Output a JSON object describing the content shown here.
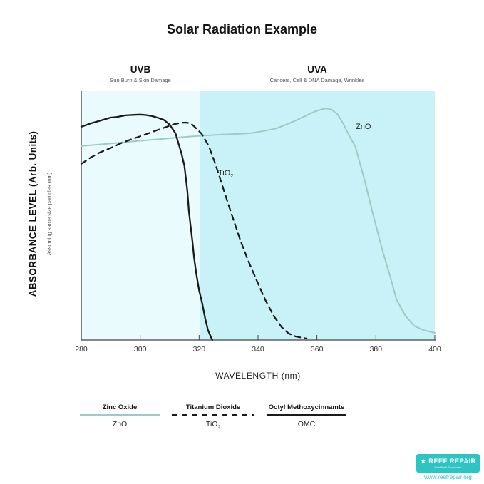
{
  "title": "Solar Radiation Example",
  "regions": {
    "uvb": {
      "label": "UVB",
      "sublabel": "Sun Burn & Skin Damage"
    },
    "uva": {
      "label": "UVA",
      "sublabel": "Cancers, Cell & DNA Damage, Wrinkles"
    }
  },
  "y_axis": {
    "label": "ABSORBANCE LEVEL (Arb. Units)",
    "sublabel": "Assuming same size particles (nm)"
  },
  "x_axis": {
    "label": "WAVELENGTH (nm)",
    "ticks": [
      "280",
      "300",
      "320",
      "340",
      "360",
      "380",
      "400"
    ]
  },
  "annotations": {
    "tio2_main": "TiO",
    "tio2_sub": "2",
    "zno": "ZnO"
  },
  "legend": [
    {
      "name": "Zinc Oxide",
      "formula_main": "ZnO",
      "formula_sub": "",
      "line": "solid-teal"
    },
    {
      "name": "Titanium Dioxide",
      "formula_main": "TiO",
      "formula_sub": "2",
      "line": "dashed-black"
    },
    {
      "name": "Octyl Methoxycinnamte",
      "formula_main": "OMC",
      "formula_sub": "",
      "line": "solid-black"
    }
  ],
  "footer": {
    "brand": "REEF REPAIR",
    "tagline": "Reef Safe Sunscreen",
    "url": "www.reefrepair.org"
  },
  "colors": {
    "teal_line": "#9bccc4",
    "black_line": "#1a1a1a",
    "uvb_bg": "#eafbfd",
    "uva_bg": "#c8f2f7",
    "brand_teal": "#2cc5c3",
    "axis": "#444444"
  },
  "chart_data": {
    "type": "line",
    "title": "Solar Radiation Example",
    "xlabel": "WAVELENGTH (nm)",
    "ylabel": "ABSORBANCE LEVEL (Arb. Units)",
    "xlim": [
      280,
      400
    ],
    "ylim": [
      0,
      1
    ],
    "x_ticks": [
      280,
      300,
      320,
      340,
      360,
      380,
      400
    ],
    "grid": false,
    "legend_position": "below",
    "regions": [
      {
        "name": "UVB",
        "range": [
          280,
          320
        ]
      },
      {
        "name": "UVA",
        "range": [
          320,
          400
        ]
      }
    ],
    "series": [
      {
        "name": "ZnO",
        "label": "Zinc Oxide",
        "style": "solid",
        "color": "#9bccc4",
        "width": 2,
        "points": [
          [
            280,
            0.78
          ],
          [
            286,
            0.786
          ],
          [
            292,
            0.792
          ],
          [
            298,
            0.799
          ],
          [
            304,
            0.805
          ],
          [
            310,
            0.811
          ],
          [
            316,
            0.817
          ],
          [
            322,
            0.822
          ],
          [
            328,
            0.826
          ],
          [
            334,
            0.829
          ],
          [
            338,
            0.832
          ],
          [
            342,
            0.84
          ],
          [
            346,
            0.85
          ],
          [
            350,
            0.868
          ],
          [
            353,
            0.883
          ],
          [
            356,
            0.9
          ],
          [
            359,
            0.917
          ],
          [
            361,
            0.925
          ],
          [
            363,
            0.931
          ],
          [
            365,
            0.926
          ],
          [
            367,
            0.907
          ],
          [
            369,
            0.868
          ],
          [
            371,
            0.82
          ],
          [
            373,
            0.779
          ],
          [
            376,
            0.65
          ],
          [
            379,
            0.507
          ],
          [
            382,
            0.37
          ],
          [
            385,
            0.249
          ],
          [
            387,
            0.163
          ],
          [
            390,
            0.097
          ],
          [
            393,
            0.057
          ],
          [
            396,
            0.04
          ],
          [
            400,
            0.029
          ]
        ]
      },
      {
        "name": "TiO2",
        "label": "Titanium Dioxide",
        "style": "dashed",
        "color": "#1a1a1a",
        "width": 2.2,
        "points": [
          [
            280,
            0.708
          ],
          [
            283,
            0.732
          ],
          [
            286.3,
            0.754
          ],
          [
            290,
            0.772
          ],
          [
            293.5,
            0.791
          ],
          [
            297,
            0.807
          ],
          [
            300.8,
            0.822
          ],
          [
            304,
            0.836
          ],
          [
            306.9,
            0.848
          ],
          [
            309.5,
            0.859
          ],
          [
            311.7,
            0.868
          ],
          [
            314,
            0.873
          ],
          [
            315.5,
            0.874
          ],
          [
            317,
            0.871
          ],
          [
            318.2,
            0.86
          ],
          [
            319.5,
            0.845
          ],
          [
            320.9,
            0.828
          ],
          [
            323.3,
            0.779
          ],
          [
            325.5,
            0.708
          ],
          [
            327.7,
            0.627
          ],
          [
            329.8,
            0.55
          ],
          [
            331.8,
            0.479
          ],
          [
            334,
            0.401
          ],
          [
            336.6,
            0.321
          ],
          [
            339.5,
            0.241
          ],
          [
            342.4,
            0.163
          ],
          [
            345.3,
            0.097
          ],
          [
            348,
            0.052
          ],
          [
            350.4,
            0.026
          ],
          [
            352.8,
            0.014
          ],
          [
            355,
            0.009
          ],
          [
            356.5,
            0.006
          ]
        ]
      },
      {
        "name": "OMC",
        "label": "Octyl Methoxycinnamte",
        "style": "solid",
        "color": "#1a1a1a",
        "width": 2.3,
        "points": [
          [
            280,
            0.857
          ],
          [
            283,
            0.87
          ],
          [
            286,
            0.88
          ],
          [
            288,
            0.887
          ],
          [
            290,
            0.894
          ],
          [
            292,
            0.896
          ],
          [
            295,
            0.903
          ],
          [
            298,
            0.905
          ],
          [
            300,
            0.906
          ],
          [
            302,
            0.904
          ],
          [
            304,
            0.9
          ],
          [
            306,
            0.893
          ],
          [
            308,
            0.885
          ],
          [
            310,
            0.866
          ],
          [
            312,
            0.83
          ],
          [
            313,
            0.79
          ],
          [
            314,
            0.751
          ],
          [
            315,
            0.7
          ],
          [
            316,
            0.6
          ],
          [
            316.5,
            0.52
          ],
          [
            317,
            0.47
          ],
          [
            317.7,
            0.4
          ],
          [
            318.3,
            0.33
          ],
          [
            319,
            0.27
          ],
          [
            320,
            0.2
          ],
          [
            321,
            0.15
          ],
          [
            322,
            0.09
          ],
          [
            323,
            0.04
          ],
          [
            324,
            0.012
          ],
          [
            324.5,
            0.0
          ]
        ]
      }
    ]
  }
}
